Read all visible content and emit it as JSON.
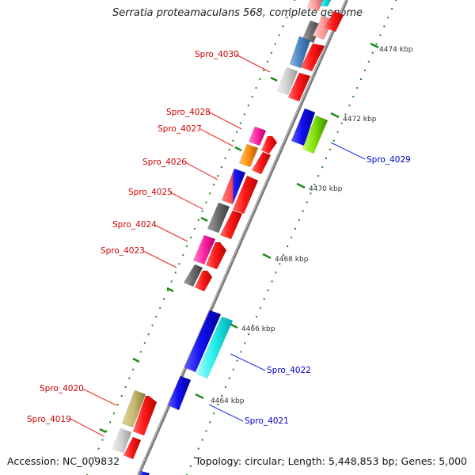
{
  "title": "Serratia proteamaculans 568, complete genome",
  "footer": {
    "accession": "Accession: NC_009832",
    "summary": "Topology: circular; Length: 5,448,853 bp; Genes: 5,000"
  },
  "colors": {
    "backbone": "#8a8a8a",
    "tick": "#1a8a1a",
    "forward_label": "#cc0000",
    "reverse_label": "#0000cc",
    "leader_forward": "#ee2222",
    "leader_reverse": "#2233ee"
  },
  "scale_labels": [
    "4464 kbp",
    "4466 kbp",
    "4468 kbp",
    "4470 kbp",
    "4472 kbp",
    "4474 kbp"
  ],
  "gene_labels": {
    "forward": [
      "Spro_4030",
      "Spro_4028",
      "Spro_4027",
      "Spro_4026",
      "Spro_4025",
      "Spro_4024",
      "Spro_4023",
      "Spro_4020",
      "Spro_4019"
    ],
    "reverse": [
      "Spro_4029",
      "Spro_4022",
      "Spro_4021"
    ]
  }
}
